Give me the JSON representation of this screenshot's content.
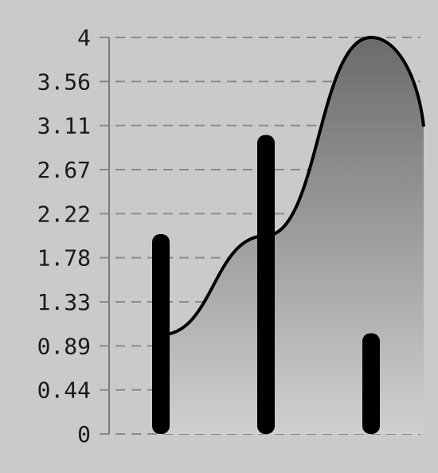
{
  "chart_data": {
    "type": "bar",
    "categories": [
      "",
      "",
      ""
    ],
    "series": [
      {
        "type": "bar",
        "values": [
          2.0,
          3.0,
          1.0
        ]
      },
      {
        "type": "area",
        "x": [
          0,
          1,
          2,
          2.5
        ],
        "values": [
          1.0,
          2.0,
          4.0,
          3.1
        ]
      }
    ],
    "yticks": [
      "0",
      "0.44",
      "0.89",
      "1.33",
      "1.78",
      "2.22",
      "2.67",
      "3.11",
      "3.56",
      "4"
    ],
    "ylim": [
      0,
      4
    ],
    "grid": true,
    "colors": {
      "background": "#cacaca",
      "bar": "#000000",
      "line": "#000000",
      "area_top": "#6b6b6b",
      "area_bottom": "#d0d0d0",
      "grid": "#8a8a8a",
      "axis": "#7a7a7a"
    }
  }
}
